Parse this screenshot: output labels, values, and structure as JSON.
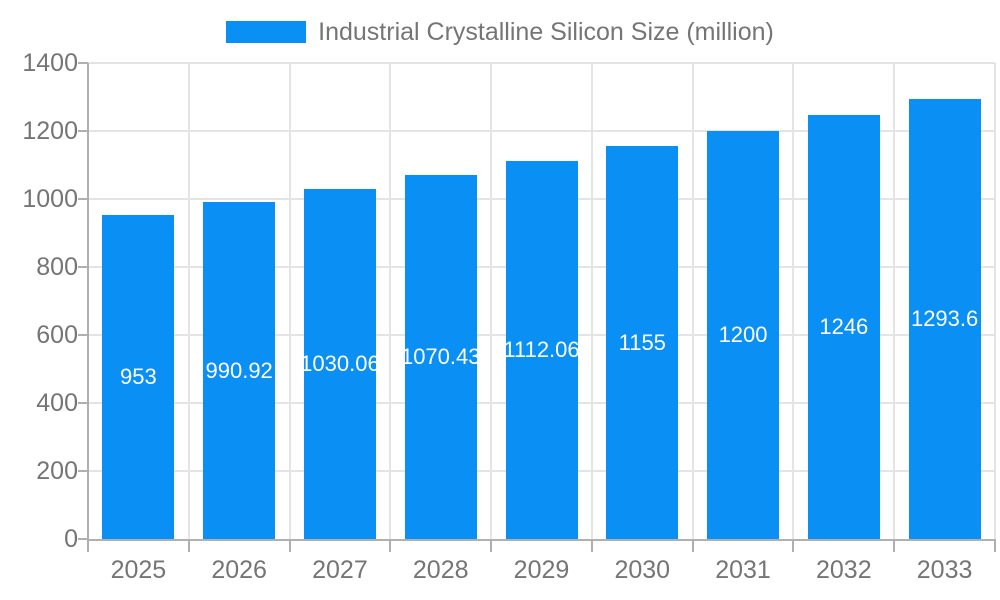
{
  "chart_data": {
    "type": "bar",
    "series_name": "Industrial Crystalline Silicon Size (million)",
    "title": "",
    "xlabel": "",
    "ylabel": "",
    "categories": [
      "2025",
      "2026",
      "2027",
      "2028",
      "2029",
      "2030",
      "2031",
      "2032",
      "2033"
    ],
    "values": [
      953,
      990.92,
      1030.06,
      1070.43,
      1112.06,
      1155,
      1200,
      1246,
      1293.6
    ],
    "bar_labels": [
      "953",
      "990.92",
      "1030.06",
      "1070.43",
      "1112.06",
      "1155",
      "1200",
      "1246",
      "1293.6"
    ],
    "ylim": [
      0,
      1400
    ],
    "yticks": [
      0,
      200,
      400,
      600,
      800,
      1000,
      1200,
      1400
    ],
    "ytick_labels": [
      "0",
      "200",
      "400",
      "600",
      "800",
      "1000",
      "1200",
      "1400"
    ],
    "legend_position": "top-center",
    "grid": "on",
    "colors": {
      "bar": "#0a8ff5",
      "bar_label_text": "#ffffff",
      "axis_text": "#757575",
      "legend_text": "#757575",
      "gridline": "#e4e4e4",
      "axis_line": "#b0b0b0",
      "background": "#ffffff"
    }
  }
}
